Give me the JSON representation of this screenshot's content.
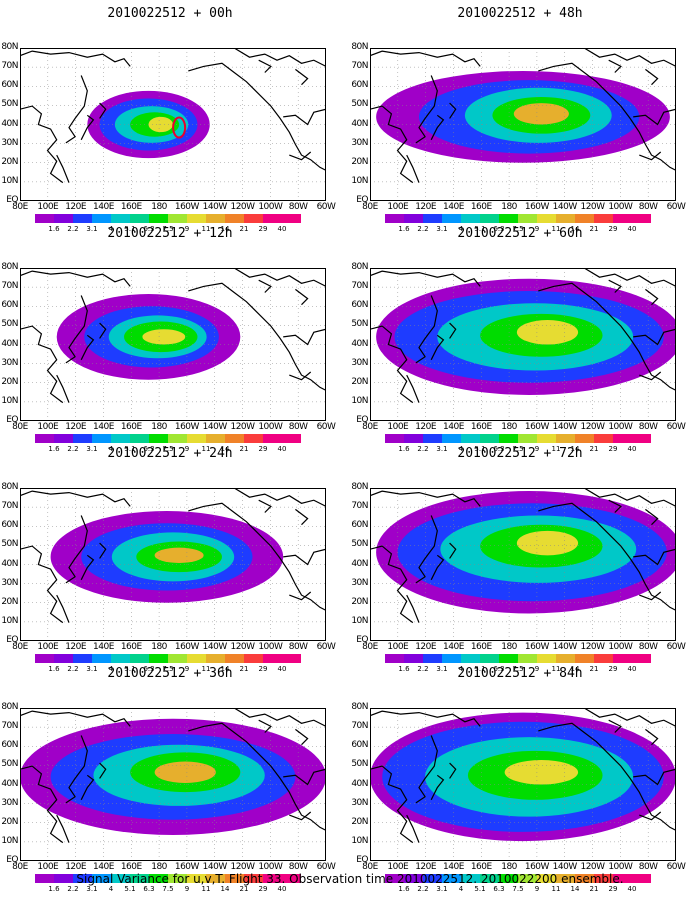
{
  "footer": "Signal Variance for u,v,T. Flight 33. Observation time 2010022512. 2010022200 ensemble.",
  "lat_labels": [
    "80N",
    "70N",
    "60N",
    "50N",
    "40N",
    "30N",
    "20N",
    "10N",
    "EQ"
  ],
  "lon_labels": [
    "80E",
    "100E",
    "120E",
    "140E",
    "160E",
    "180",
    "160W",
    "140W",
    "120W",
    "100W",
    "80W",
    "60W"
  ],
  "colorbar": {
    "levels": [
      "1.6",
      "2.2",
      "3.1",
      "4",
      "5.1",
      "6.3",
      "7.5",
      "9",
      "11",
      "14",
      "21",
      "29",
      "40"
    ],
    "colors": [
      "#a000c8",
      "#8200dc",
      "#1e3cff",
      "#0096ff",
      "#00c8c8",
      "#00d28c",
      "#00dc00",
      "#a0e632",
      "#e6dc32",
      "#e6af2d",
      "#f08228",
      "#fa3c3c",
      "#f00082"
    ]
  },
  "panels": [
    {
      "title": "2010022512 + 00h"
    },
    {
      "title": "2010022512 + 48h"
    },
    {
      "title": "2010022512 + 12h"
    },
    {
      "title": "2010022512 + 60h"
    },
    {
      "title": "2010022512 + 24h"
    },
    {
      "title": "2010022512 + 72h"
    },
    {
      "title": "2010022512 + 36h"
    },
    {
      "title": "2010022512 + 84h"
    }
  ]
}
